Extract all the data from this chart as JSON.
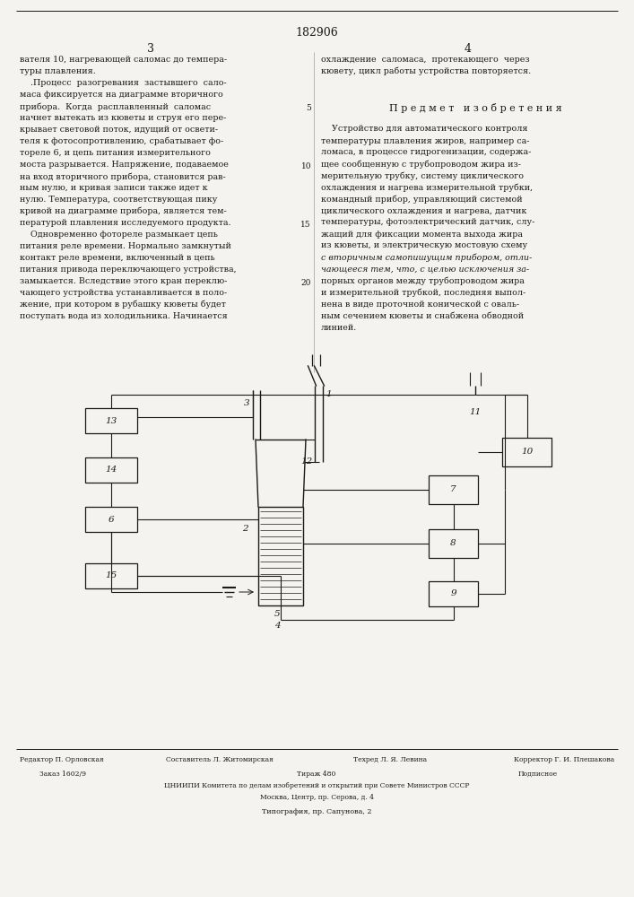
{
  "patent_number": "182906",
  "page_left": "3",
  "page_right": "4",
  "bg_color": "#f5f3ef",
  "text_color": "#1a1a1a",
  "left_col_lines": [
    "вателя 10, нагревающей саломас до темпера-",
    "туры плавления.",
    "    .Процесс  разогревания  застывшего  сало-",
    "маса фиксируется на диаграмме вторичного",
    "прибора.  Когда  расплавленный  саломас",
    "начнет вытекать из кюветы и струя его пере-",
    "крывает световой поток, идущий от освети-",
    "теля к фотосопротивлению, срабатывает фо-",
    "тореле 6, и цепь питания измерительного",
    "моста разрывается. Напряжение, подаваемое",
    "на вход вторичного прибора, становится рав-",
    "ным нулю, и кривая записи также идет к",
    "нулю. Температура, соответствующая пику",
    "кривой на диаграмме прибора, является тем-",
    "пературой плавления исследуемого продукта.",
    "    Одновременно фотореле размыкает цепь",
    "питания реле времени. Нормально замкнутый",
    "контакт реле времени, включенный в цепь",
    "питания привода переключающего устройства,",
    "замыкается. Вследствие этого кран переклю-",
    "чающего устройства устанавливается в поло-",
    "жение, при котором в рубашку кюветы будет",
    "поступать вода из холодильника. Начинается"
  ],
  "right_col_top": [
    "охлаждение  саломаса,  протекающего  через",
    "кювету, цикл работы устройства повторяется."
  ],
  "subject_title": "П р е д м е т   и з о б р е т е н и я",
  "right_col_body": [
    "    Устройство для автоматического контроля",
    "температуры плавления жиров, например са-",
    "ломаса, в процессе гидрогенизации, содержа-",
    "щее сообщенную с трубопроводом жира из-",
    "мерительную трубку, систему циклического",
    "охлаждения и нагрева измерительной трубки,",
    "командный прибор, управляющий системой",
    "циклического охлаждения и нагрева, датчик",
    "температуры, фотоэлектрический датчик, слу-",
    "жащий для фиксации момента выхода жира",
    "из кюветы, и электрическую мостовую схему",
    "с вторичным самопишущим прибором, отли-",
    "чающееся тем, что, с целью исключения за-",
    "порных органов между трубопроводом жира",
    "и измерительной трубкой, последняя выпол-",
    "нена в виде проточной конической с оваль-",
    "ным сечением кюветы и снабжена обводной",
    "линией."
  ],
  "italic_lines": [
    11,
    12
  ],
  "line_numbers": [
    [
      5,
      4
    ],
    [
      10,
      9
    ],
    [
      15,
      14
    ],
    [
      20,
      19
    ]
  ],
  "footer_roles": [
    "Редактор П. Орловская",
    "Составитель Л. Житомирская",
    "Техред Л. Я. Левина",
    "Корректор Г. И. Плешакова"
  ],
  "footer_line2": "Заказ 1602/9",
  "footer_line2b": "Тираж 480",
  "footer_line2c": "Подписное",
  "footer_line3": "ЦНИИПИ Комитета по делам изобретений и открытий при Совете Министров СССР",
  "footer_line4": "Москва, Центр, пр. Серова, д. 4",
  "footer_line5": "Типография, пр. Сапунова, 2"
}
